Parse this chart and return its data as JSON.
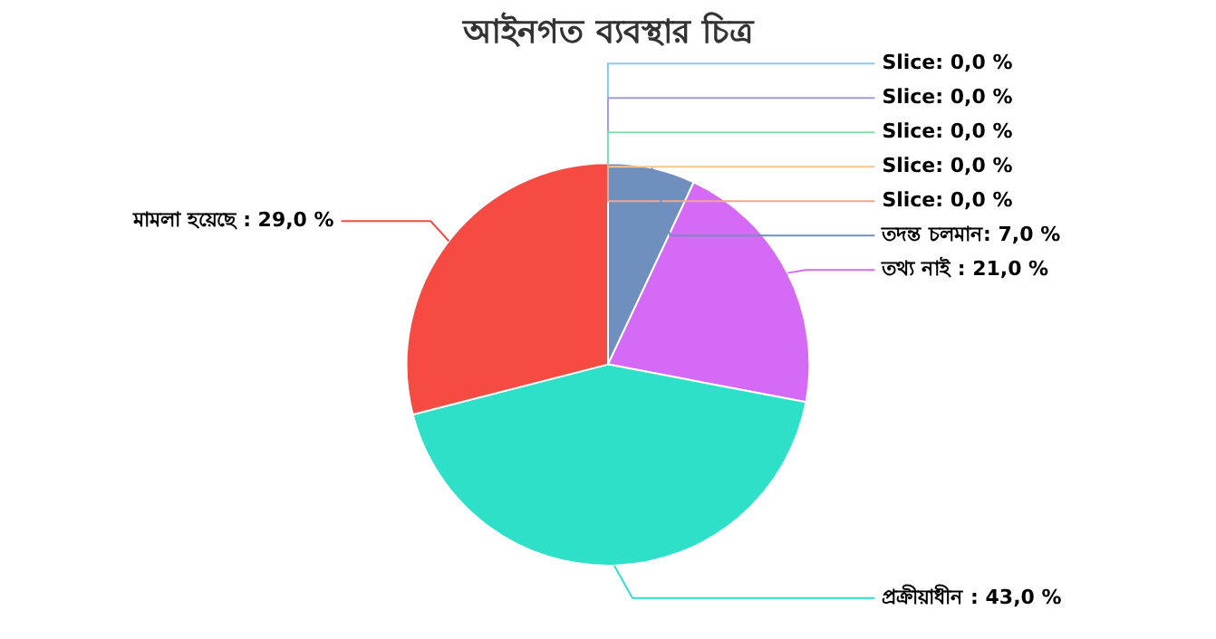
{
  "chart_data": {
    "type": "pie",
    "title": "আইনগত ব্যবস্থার চিত্র",
    "categories": [
      "Slice",
      "Slice",
      "Slice",
      "Slice",
      "Slice",
      "তদন্ত চলমান",
      "তথ্য নাই",
      "প্রক্রীয়াধীন",
      "মামলা হয়েছে"
    ],
    "values": [
      0,
      0,
      0,
      0,
      0,
      7,
      21,
      43,
      29
    ],
    "colors": [
      "#8cc8f2",
      "#a09ee0",
      "#80e2ae",
      "#f6c48c",
      "#f2a690",
      "#6f8fbf",
      "#d56af6",
      "#2fe0c9",
      "#f54b43"
    ],
    "value_labels": [
      ": 0,0 %",
      ": 0,0 %",
      ": 0,0 %",
      ": 0,0 %",
      ": 0,0 %",
      ": 7,0 %",
      " : 21,0 %",
      " : 43,0 %",
      " : 29,0 %"
    ]
  }
}
